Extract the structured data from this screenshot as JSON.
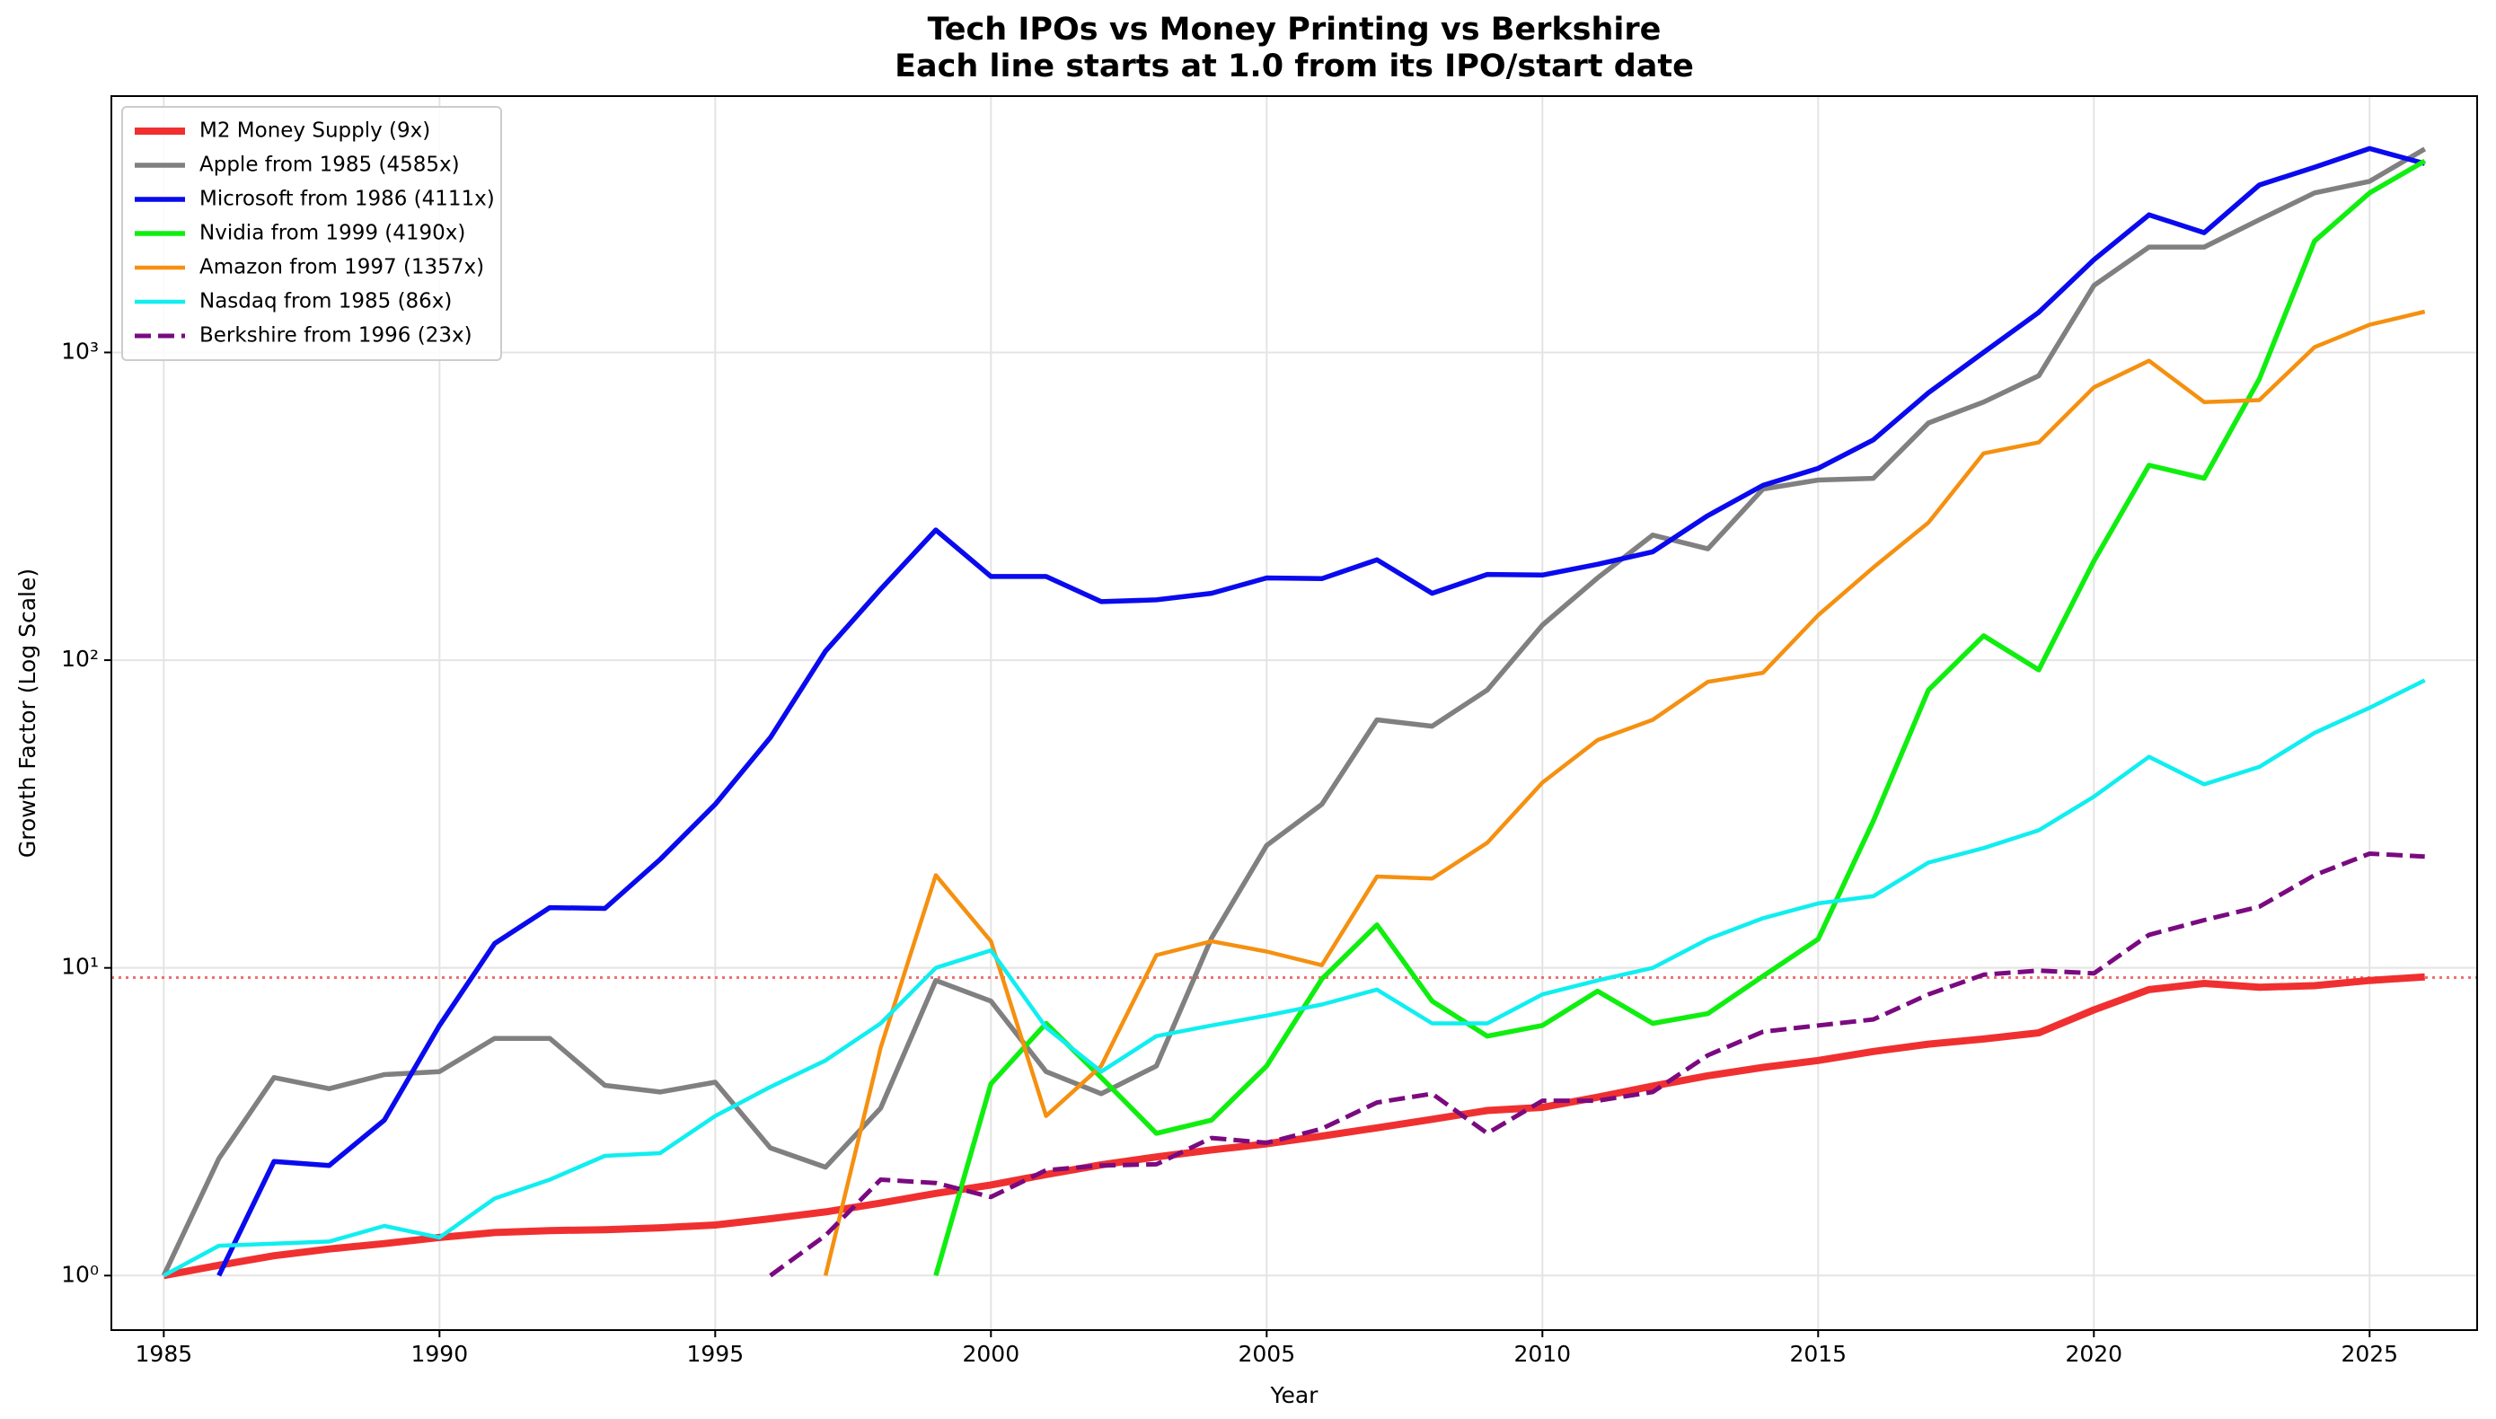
{
  "chart_data": {
    "type": "line",
    "title": "Tech IPOs vs Money Printing vs Berkshire",
    "subtitle": "Each line starts at 1.0 from its IPO/start date",
    "x_label": "Year",
    "y_label": "Growth Factor (Log Scale)",
    "log_scale_y": true,
    "grid": true,
    "legend": "upper left",
    "x": [
      1985,
      1986,
      1987,
      1988,
      1989,
      1990,
      1991,
      1992,
      1993,
      1994,
      1995,
      1996,
      1997,
      1998,
      1999,
      2000,
      2001,
      2002,
      2003,
      2004,
      2005,
      2006,
      2007,
      2008,
      2009,
      2010,
      2011,
      2012,
      2013,
      2014,
      2015,
      2016,
      2017,
      2018,
      2019,
      2020,
      2021,
      2022,
      2023,
      2024,
      2025,
      2026
    ],
    "xlim": [
      1984.05,
      2026.95
    ],
    "xticks": [
      1985,
      1990,
      1995,
      2000,
      2005,
      2010,
      2015,
      2020,
      2025
    ],
    "ylim": [
      0.665,
      6810
    ],
    "yticks": [
      {
        "value": 1,
        "label": "10⁰"
      },
      {
        "value": 10,
        "label": "10¹"
      },
      {
        "value": 100,
        "label": "10²"
      },
      {
        "value": 1000,
        "label": "10³"
      }
    ],
    "hline": {
      "value": 9.3,
      "color": "#ee7070",
      "style": "dotted"
    },
    "series": [
      {
        "name": "M2 Money Supply (9x)",
        "color": "#f03030",
        "width": 8,
        "style": "solid",
        "values": [
          1.0,
          1.08,
          1.16,
          1.22,
          1.27,
          1.33,
          1.38,
          1.4,
          1.41,
          1.43,
          1.46,
          1.53,
          1.61,
          1.72,
          1.85,
          1.97,
          2.13,
          2.29,
          2.43,
          2.56,
          2.68,
          2.84,
          3.02,
          3.22,
          3.44,
          3.52,
          3.8,
          4.13,
          4.46,
          4.75,
          5.0,
          5.35,
          5.65,
          5.87,
          6.15,
          7.3,
          8.5,
          8.9,
          8.65,
          8.75,
          9.1,
          9.35
        ]
      },
      {
        "name": "Apple from 1985 (4585x)",
        "color": "#808080",
        "width": 5.5,
        "style": "solid",
        "values": [
          1.0,
          2.4,
          4.4,
          4.05,
          4.5,
          4.6,
          5.9,
          5.9,
          4.15,
          3.95,
          4.25,
          2.6,
          2.25,
          3.5,
          9.1,
          7.8,
          4.6,
          3.9,
          4.8,
          12.5,
          25,
          34,
          64,
          61,
          80,
          130,
          185,
          255,
          230,
          360,
          385,
          390,
          590,
          690,
          840,
          1650,
          2200,
          2200,
          2700,
          3300,
          3600,
          4585
        ]
      },
      {
        "name": "Microsoft from 1986 (4111x)",
        "color": "#0a0aee",
        "width": 5.5,
        "style": "solid",
        "values": [
          null,
          1.0,
          2.35,
          2.28,
          3.2,
          6.5,
          12,
          15.7,
          15.6,
          22.5,
          34,
          56,
          107,
          170,
          265,
          187,
          187,
          155,
          157,
          165,
          185,
          184,
          212,
          165,
          190,
          189,
          205,
          225,
          295,
          370,
          420,
          520,
          740,
          1000,
          1350,
          2000,
          2800,
          2450,
          3500,
          4000,
          4600,
          4111
        ]
      },
      {
        "name": "Nvidia from 1999 (4190x)",
        "color": "#10ee10",
        "width": 5.5,
        "style": "solid",
        "values": [
          null,
          null,
          null,
          null,
          null,
          null,
          null,
          null,
          null,
          null,
          null,
          null,
          null,
          null,
          1.0,
          4.2,
          6.6,
          4.4,
          2.9,
          3.2,
          4.8,
          9.2,
          13.8,
          7.8,
          6.0,
          6.5,
          8.4,
          6.6,
          7.1,
          9.4,
          12.4,
          30,
          80,
          120,
          93,
          210,
          430,
          390,
          820,
          2300,
          3300,
          4190
        ]
      },
      {
        "name": "Amazon from 1997 (1357x)",
        "color": "#f59010",
        "width": 4.5,
        "style": "solid",
        "values": [
          null,
          null,
          null,
          null,
          null,
          null,
          null,
          null,
          null,
          null,
          null,
          null,
          1.0,
          5.5,
          20,
          12.2,
          3.3,
          4.8,
          11,
          12.2,
          11.3,
          10.2,
          19.8,
          19.5,
          25.5,
          40,
          55,
          64,
          85,
          91,
          140,
          200,
          280,
          470,
          510,
          770,
          940,
          690,
          700,
          1040,
          1230,
          1357
        ]
      },
      {
        "name": "Nasdaq from 1985 (86x)",
        "color": "#10eef0",
        "width": 4.5,
        "style": "solid",
        "values": [
          1.0,
          1.25,
          1.27,
          1.29,
          1.45,
          1.33,
          1.78,
          2.05,
          2.45,
          2.5,
          3.3,
          4.1,
          5.0,
          6.6,
          10.0,
          11.4,
          6.4,
          4.6,
          6.0,
          6.5,
          7.0,
          7.6,
          8.5,
          6.6,
          6.6,
          8.2,
          9.1,
          10.0,
          12.4,
          14.5,
          16.2,
          17.1,
          22,
          24.5,
          28,
          36,
          48.5,
          39.5,
          45,
          58,
          70,
          86
        ]
      },
      {
        "name": "Berkshire from 1996 (23x)",
        "color": "#7a0a80",
        "width": 5,
        "style": "dashed",
        "values": [
          null,
          null,
          null,
          null,
          null,
          null,
          null,
          null,
          null,
          null,
          null,
          1.0,
          1.35,
          2.05,
          2.0,
          1.8,
          2.2,
          2.28,
          2.3,
          2.8,
          2.7,
          3.0,
          3.65,
          3.9,
          2.9,
          3.7,
          3.7,
          3.95,
          5.2,
          6.2,
          6.5,
          6.8,
          8.2,
          9.5,
          9.8,
          9.6,
          12.8,
          14.3,
          15.8,
          20,
          23.5,
          23
        ]
      }
    ]
  }
}
